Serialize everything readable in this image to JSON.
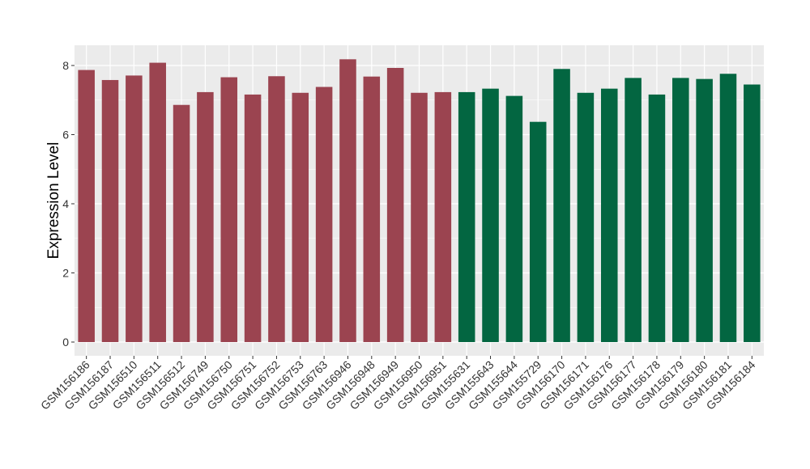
{
  "chart_data": {
    "type": "bar",
    "ylabel": "Expression Level",
    "xlabel": "",
    "title": "",
    "ylim": [
      -0.2,
      8.35
    ],
    "yticks": [
      0,
      2,
      4,
      6,
      8
    ],
    "grid": true,
    "legend": "none",
    "categories": [
      "GSM156186",
      "GSM156187",
      "GSM156510",
      "GSM156511",
      "GSM156512",
      "GSM156749",
      "GSM156750",
      "GSM156751",
      "GSM156752",
      "GSM156753",
      "GSM156763",
      "GSM156946",
      "GSM156948",
      "GSM156949",
      "GSM156950",
      "GSM156951",
      "GSM155631",
      "GSM155643",
      "GSM155644",
      "GSM155729",
      "GSM156170",
      "GSM156171",
      "GSM156176",
      "GSM156177",
      "GSM156178",
      "GSM156179",
      "GSM156180",
      "GSM156181",
      "GSM156184"
    ],
    "values": [
      7.87,
      7.58,
      7.71,
      8.08,
      6.86,
      7.23,
      7.66,
      7.16,
      7.69,
      7.21,
      7.38,
      8.18,
      7.68,
      7.93,
      7.21,
      7.23,
      7.23,
      7.33,
      7.12,
      6.37,
      7.9,
      7.21,
      7.33,
      7.64,
      7.16,
      7.64,
      7.61,
      7.76,
      7.45
    ],
    "groups": [
      "A",
      "A",
      "A",
      "A",
      "A",
      "A",
      "A",
      "A",
      "A",
      "A",
      "A",
      "A",
      "A",
      "A",
      "A",
      "A",
      "B",
      "B",
      "B",
      "B",
      "B",
      "B",
      "B",
      "B",
      "B",
      "B",
      "B",
      "B",
      "B"
    ],
    "group_colors": {
      "A": "#9b4450",
      "B": "#036641"
    },
    "panel_color": "#ebebeb",
    "grid_color": "#ffffff"
  }
}
